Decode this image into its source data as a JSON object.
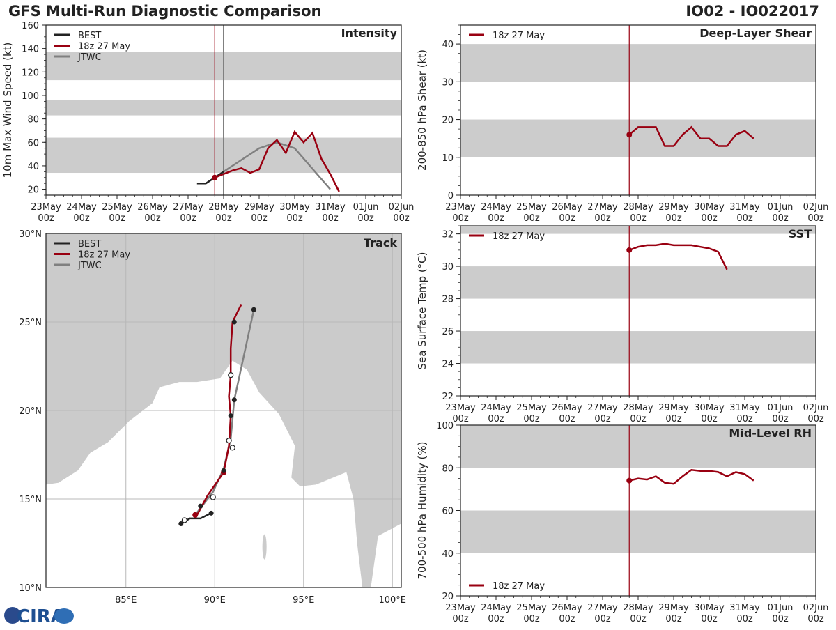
{
  "header": {
    "title": "GFS Multi-Run Diagnostic Comparison",
    "storm_id": "IO02 - IO022017"
  },
  "logo": {
    "text": "CIRA"
  },
  "colors": {
    "best": "#222222",
    "run": "#990011",
    "jtwc": "#808080",
    "band": "#cccccc",
    "land": "#cbcbcb",
    "sea": "#ffffff"
  },
  "time_axis": {
    "ticks": [
      "23May\n00z",
      "24May\n00z",
      "25May\n00z",
      "26May\n00z",
      "27May\n00z",
      "28May\n00z",
      "29May\n00z",
      "30May\n00z",
      "31May\n00z",
      "01Jun\n00z",
      "02Jun\n00z"
    ],
    "init_day": 4.75
  },
  "panels": {
    "intensity": {
      "title": "Intensity",
      "ylabel": "10m Max Wind Speed (kt)",
      "ylim": [
        15,
        160
      ],
      "yticks": [
        20,
        40,
        60,
        80,
        100,
        120,
        140,
        160
      ],
      "bands": [
        [
          34,
          64
        ],
        [
          83,
          96
        ],
        [
          113,
          137
        ]
      ],
      "legend": [
        "BEST",
        "18z 27 May",
        "JTWC"
      ],
      "jtwc_marker_day": 5.0,
      "series": {
        "best": {
          "x": [
            4.25,
            4.5,
            4.75,
            5.0
          ],
          "y": [
            25,
            25,
            30,
            35
          ]
        },
        "run": {
          "x": [
            4.75,
            5.0,
            5.25,
            5.5,
            5.75,
            6.0,
            6.25,
            6.5,
            6.75,
            7.0,
            7.25,
            7.5,
            7.75,
            8.0,
            8.25
          ],
          "y": [
            30,
            33,
            36,
            38,
            34,
            37,
            55,
            62,
            51,
            69,
            60,
            68,
            46,
            33,
            18
          ]
        },
        "jtwc": {
          "x": [
            5.0,
            5.5,
            6.0,
            6.5,
            7.0,
            8.0
          ],
          "y": [
            35,
            45,
            55,
            60,
            55,
            20
          ]
        }
      }
    },
    "shear": {
      "title": "Deep-Layer Shear",
      "ylabel": "200-850 hPa Shear (kt)",
      "ylim": [
        0,
        45
      ],
      "yticks": [
        0,
        10,
        20,
        30,
        40
      ],
      "bands": [
        [
          10,
          20
        ],
        [
          30,
          40
        ]
      ],
      "legend": [
        "18z 27 May"
      ],
      "series": {
        "x": [
          4.75,
          5.0,
          5.25,
          5.5,
          5.75,
          6.0,
          6.25,
          6.5,
          6.75,
          7.0,
          7.25,
          7.5,
          7.75,
          8.0,
          8.25
        ],
        "y": [
          16,
          18,
          18,
          18,
          13,
          13,
          16,
          18,
          15,
          15,
          13,
          13,
          16,
          17,
          15
        ]
      }
    },
    "sst": {
      "title": "SST",
      "ylabel": "Sea Surface Temp (°C)",
      "ylim": [
        22,
        32.5
      ],
      "yticks": [
        22,
        24,
        26,
        28,
        30,
        32
      ],
      "bands": [
        [
          24,
          26
        ],
        [
          28,
          30
        ],
        [
          32,
          32.5
        ]
      ],
      "legend": [
        "18z 27 May"
      ],
      "series": {
        "x": [
          4.75,
          5.0,
          5.25,
          5.5,
          5.75,
          6.0,
          6.25,
          6.5,
          6.75,
          7.0,
          7.25,
          7.5
        ],
        "y": [
          31.0,
          31.2,
          31.3,
          31.3,
          31.4,
          31.3,
          31.3,
          31.3,
          31.2,
          31.1,
          30.9,
          29.8
        ]
      }
    },
    "rh": {
      "title": "Mid-Level RH",
      "ylabel": "700-500 hPa Humidity (%)",
      "ylim": [
        20,
        100
      ],
      "yticks": [
        20,
        40,
        60,
        80,
        100
      ],
      "bands": [
        [
          40,
          60
        ],
        [
          80,
          100
        ]
      ],
      "legend": [
        "18z 27 May"
      ],
      "series": {
        "x": [
          4.75,
          5.0,
          5.25,
          5.5,
          5.75,
          6.0,
          6.25,
          6.5,
          6.75,
          7.0,
          7.25,
          7.5,
          7.75,
          8.0,
          8.25
        ],
        "y": [
          74,
          75,
          74.5,
          76,
          73,
          72.5,
          76,
          79,
          78.5,
          78.5,
          78,
          76,
          78,
          77,
          74
        ]
      }
    },
    "track": {
      "title": "Track",
      "legend": [
        "BEST",
        "18z 27 May",
        "JTWC"
      ],
      "lon_range": [
        80.5,
        100.5
      ],
      "lat_range": [
        10,
        30
      ],
      "lon_ticks": [
        85,
        90,
        95,
        100
      ],
      "lat_ticks": [
        10,
        15,
        20,
        25,
        30
      ],
      "lon_labels": [
        "85°E",
        "90°E",
        "95°E",
        "100°E"
      ],
      "lat_labels": [
        "10°N",
        "15°N",
        "20°N",
        "25°N",
        "30°N"
      ],
      "best": {
        "lon": [
          89.8,
          89.2,
          88.6,
          88.1
        ],
        "lat": [
          14.2,
          13.9,
          13.9,
          13.6
        ]
      },
      "run": {
        "lon": [
          88.9,
          89.6,
          90.5,
          90.8,
          90.9,
          90.8,
          90.9,
          90.9,
          91.0,
          91.5
        ],
        "lat": [
          13.9,
          15.2,
          16.5,
          18.0,
          19.7,
          20.8,
          22.0,
          23.5,
          25.0,
          26.0
        ]
      },
      "jtwc": {
        "lon": [
          88.9,
          89.9,
          90.5,
          90.9,
          91.1,
          92.2
        ],
        "lat": [
          14.1,
          15.4,
          16.7,
          18.4,
          20.6,
          25.7
        ]
      },
      "best_dots": [
        [
          89.8,
          14.2
        ],
        [
          89.2,
          14.6
        ],
        [
          88.1,
          13.6
        ],
        [
          90.5,
          16.6
        ],
        [
          90.9,
          19.7
        ],
        [
          91.1,
          20.6
        ],
        [
          91.1,
          25.0
        ],
        [
          92.2,
          25.7
        ]
      ],
      "open_dots": [
        [
          88.3,
          13.8
        ],
        [
          89.9,
          15.1
        ],
        [
          90.8,
          18.3
        ],
        [
          91.0,
          17.9
        ],
        [
          90.9,
          22.0
        ]
      ],
      "run_dots": [
        [
          88.9,
          14.1
        ],
        [
          90.5,
          16.5
        ]
      ]
    }
  }
}
